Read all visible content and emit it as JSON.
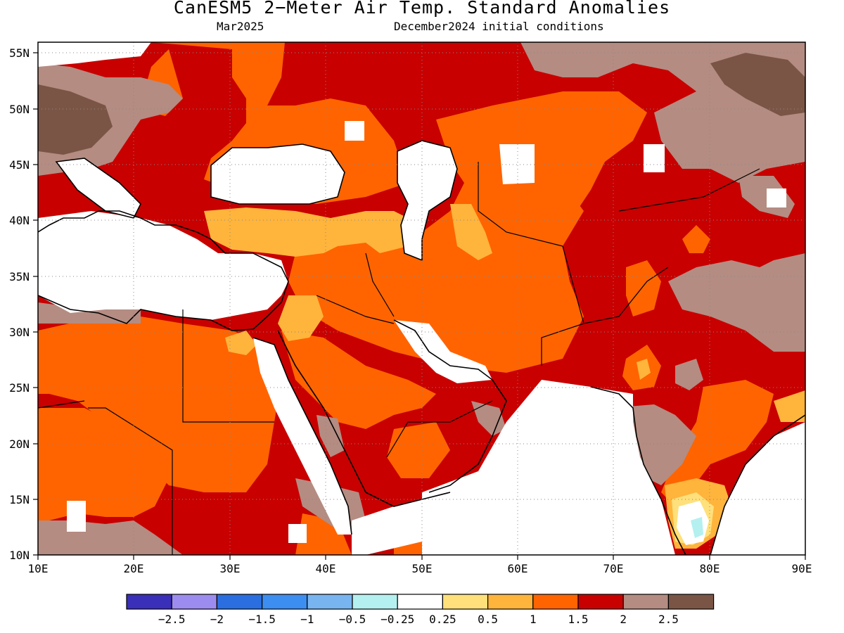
{
  "title": "CanESM5 2−Meter Air Temp. Standard Anomalies",
  "subtitle_left": "Mar2025",
  "subtitle_right": "December2024 initial conditions",
  "map": {
    "lon_range": [
      10,
      90
    ],
    "lat_range": [
      10,
      56
    ],
    "x_ticks": [
      "10E",
      "20E",
      "30E",
      "40E",
      "50E",
      "60E",
      "70E",
      "80E",
      "90E"
    ],
    "y_ticks": [
      "10N",
      "15N",
      "20N",
      "25N",
      "30N",
      "35N",
      "40N",
      "45N",
      "50N",
      "55N"
    ],
    "grid": "dotted"
  },
  "colorbar": {
    "colors": [
      "#3a2fb8",
      "#9c8cf0",
      "#2a6ee0",
      "#3c8ef0",
      "#78b4f0",
      "#b4f0f0",
      "#ffffff",
      "#ffe07a",
      "#ffb43c",
      "#ff6400",
      "#c80000",
      "#b48c82",
      "#7a5546"
    ],
    "labels": [
      "−2.5",
      "−2",
      "−1.5",
      "−1",
      "−0.5",
      "−0.25",
      "0.25",
      "0.5",
      "1",
      "1.5",
      "2",
      "2.5"
    ]
  }
}
